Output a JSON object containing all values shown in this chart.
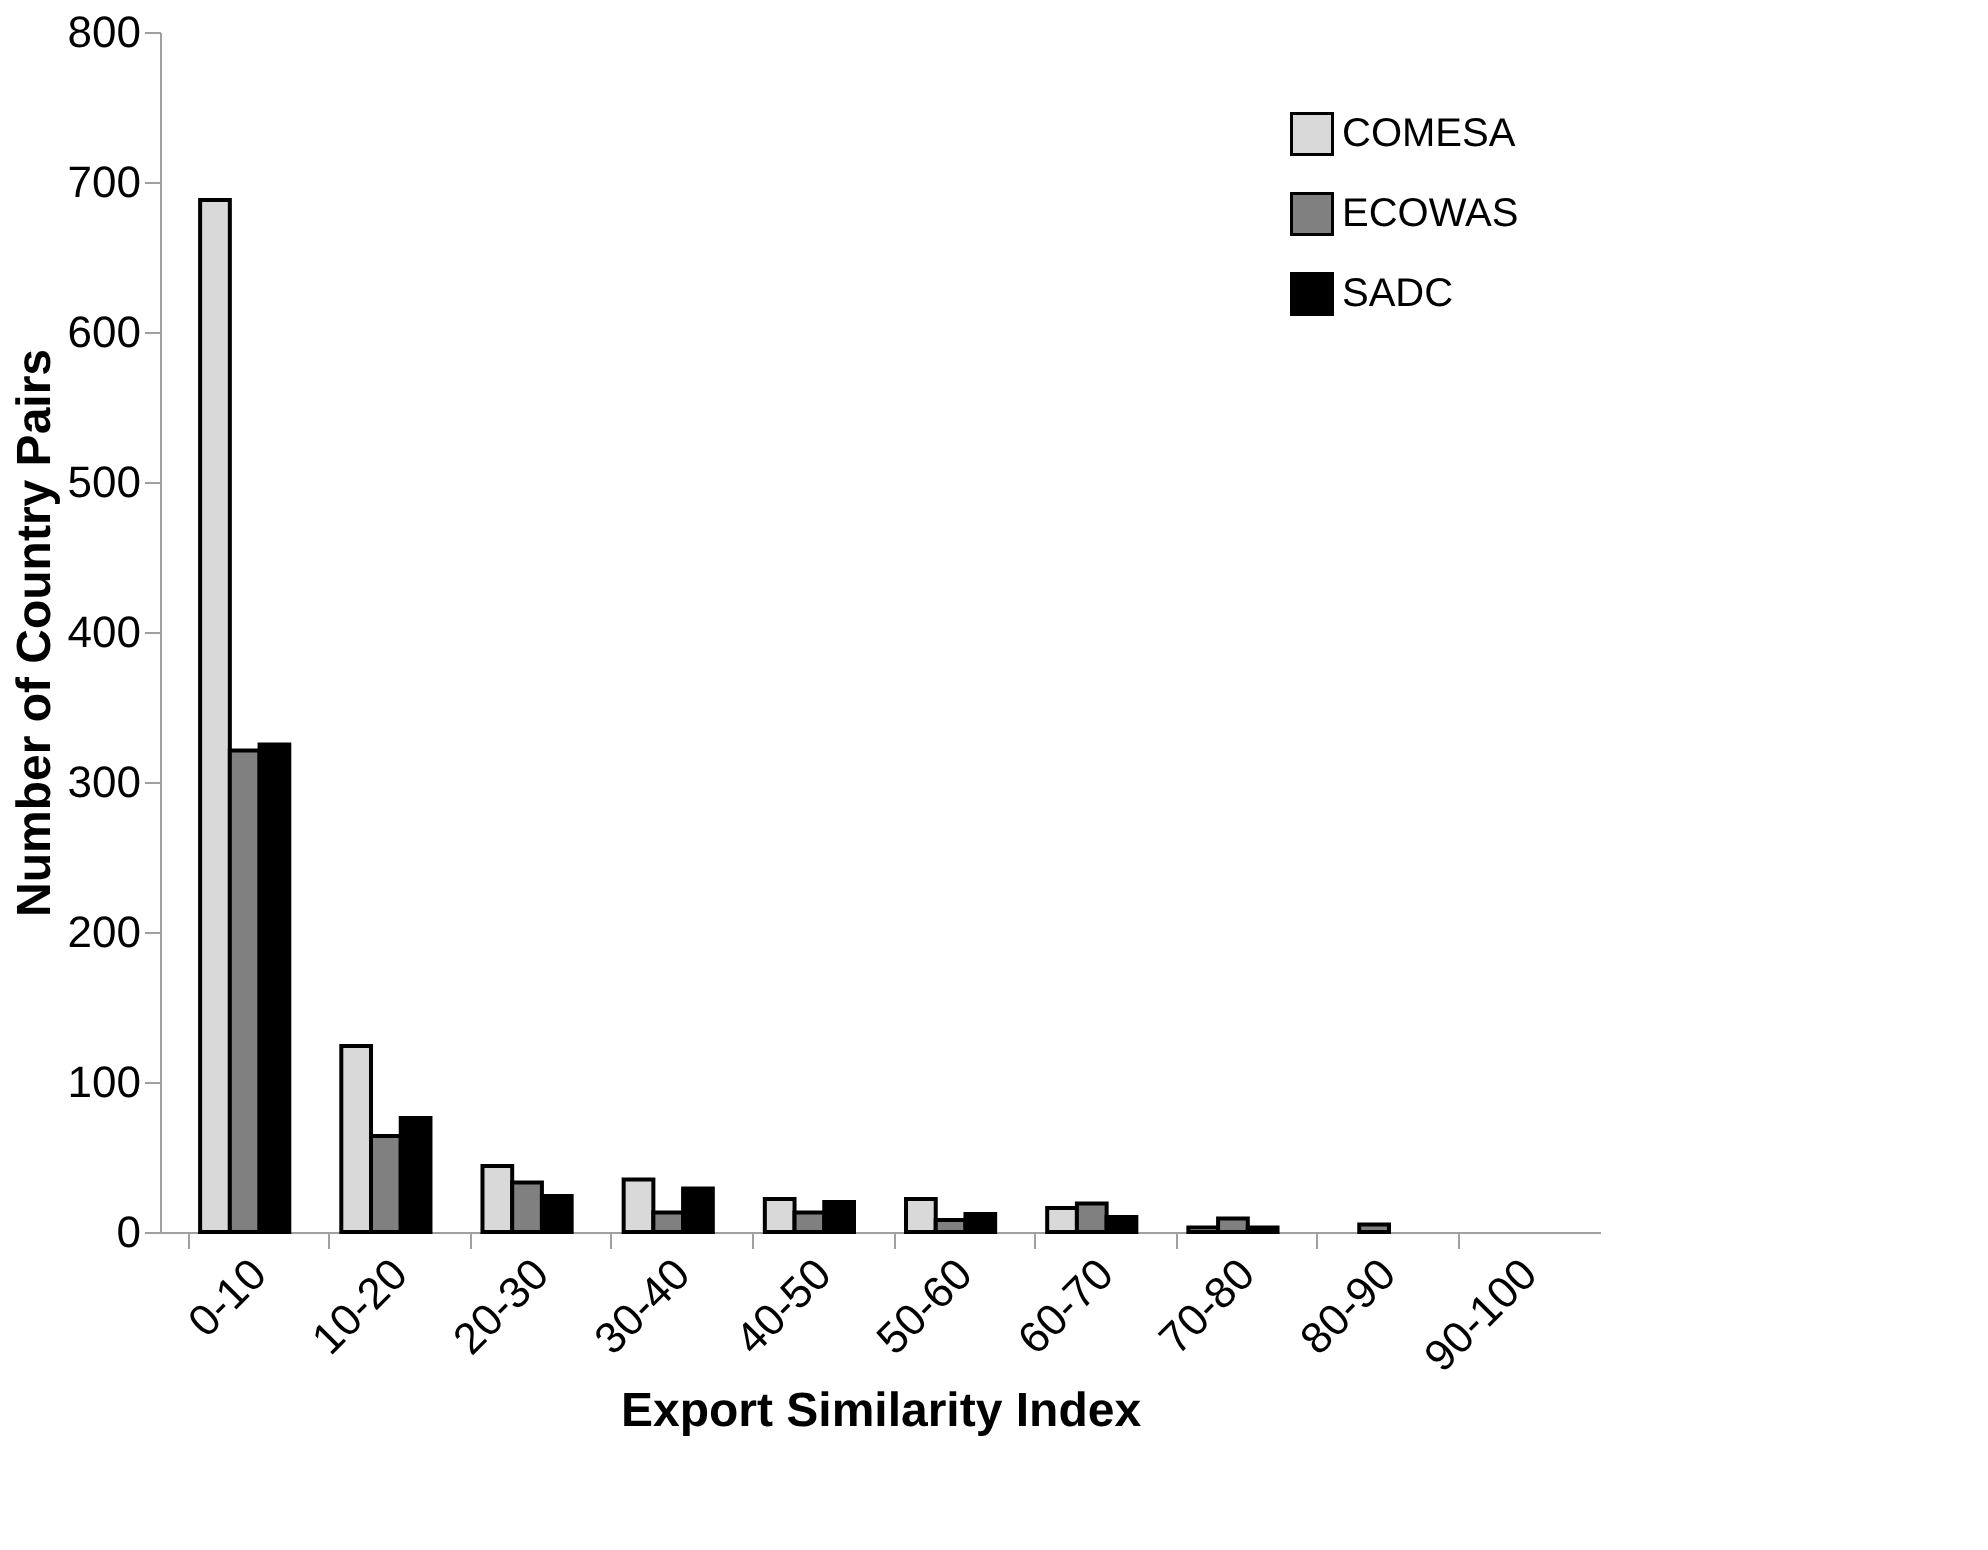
{
  "chart_data": {
    "type": "bar",
    "xlabel": "Export Similarity Index",
    "ylabel": "Number of Country Pairs",
    "categories": [
      "0-10",
      "10-20",
      "20-30",
      "30-40",
      "40-50",
      "50-60",
      "60-70",
      "70-80",
      "80-90",
      "90-100"
    ],
    "series": [
      {
        "name": "COMESA",
        "color": "#d9d9d9",
        "values": [
          688,
          124,
          44,
          35,
          22,
          22,
          16,
          3,
          0,
          0
        ]
      },
      {
        "name": "ECOWAS",
        "color": "#808080",
        "values": [
          321,
          64,
          33,
          13,
          13,
          8,
          19,
          9,
          5,
          0
        ]
      },
      {
        "name": "SADC",
        "color": "#000000",
        "values": [
          325,
          76,
          24,
          29,
          20,
          12,
          10,
          3,
          0,
          0
        ]
      }
    ],
    "ylim": [
      0,
      800
    ],
    "yticks": [
      0,
      100,
      200,
      300,
      400,
      500,
      600,
      700,
      800
    ],
    "grid": false,
    "legend": "top right"
  }
}
